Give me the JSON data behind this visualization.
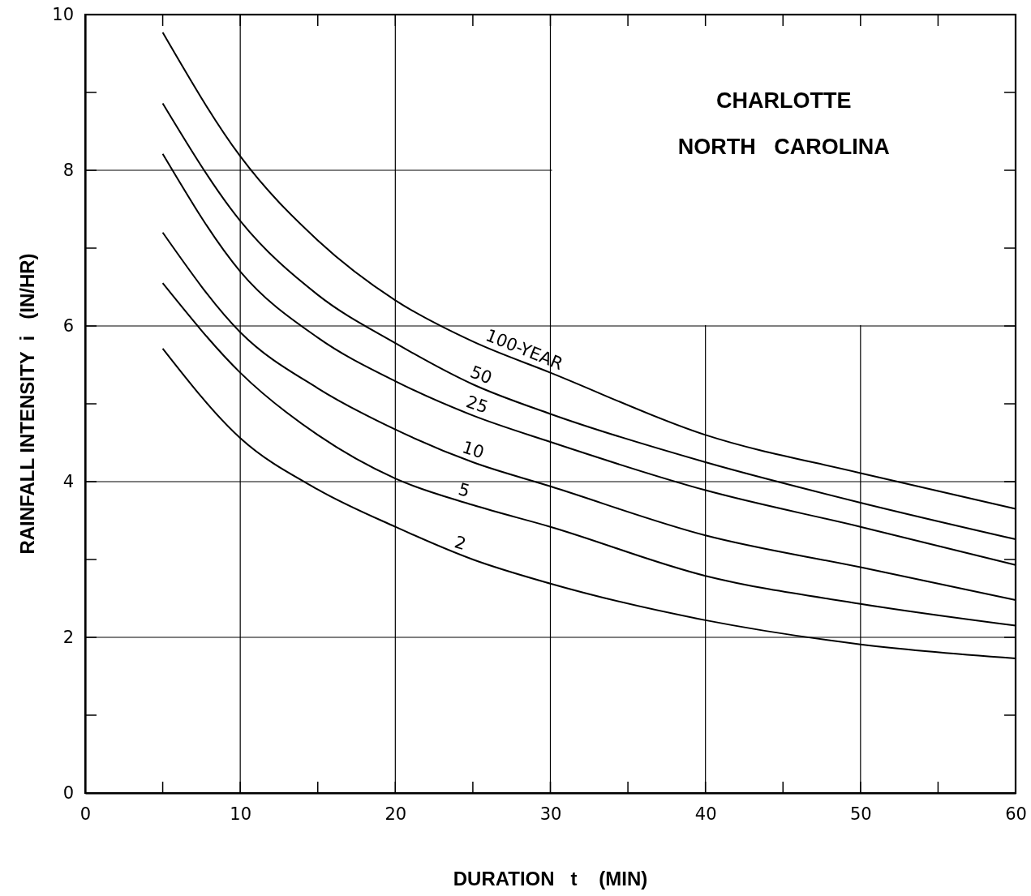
{
  "chart_data": {
    "type": "line",
    "title": "CHARLOTTE",
    "subtitle": "NORTH   CAROLINA",
    "xlabel": "DURATION   t    (MIN)",
    "ylabel": "RAINFALL INTENSITY  i   (IN/HR)",
    "x": [
      5,
      10,
      15,
      20,
      25,
      30,
      40,
      50,
      60
    ],
    "series": [
      {
        "name": "100-YEAR",
        "color": "#000000",
        "values": [
          9.77,
          8.18,
          7.1,
          6.33,
          5.8,
          5.4,
          4.6,
          4.11,
          3.65
        ]
      },
      {
        "name": "50",
        "color": "#000000",
        "values": [
          8.86,
          7.35,
          6.4,
          5.78,
          5.25,
          4.87,
          4.25,
          3.73,
          3.26
        ]
      },
      {
        "name": "25",
        "color": "#000000",
        "values": [
          8.21,
          6.7,
          5.85,
          5.29,
          4.85,
          4.51,
          3.89,
          3.42,
          2.93
        ]
      },
      {
        "name": "10",
        "color": "#000000",
        "values": [
          7.2,
          5.92,
          5.2,
          4.67,
          4.25,
          3.94,
          3.31,
          2.9,
          2.48
        ]
      },
      {
        "name": "5",
        "color": "#000000",
        "values": [
          6.55,
          5.4,
          4.6,
          4.04,
          3.7,
          3.42,
          2.79,
          2.43,
          2.15
        ]
      },
      {
        "name": "2",
        "color": "#000000",
        "values": [
          5.71,
          4.56,
          3.9,
          3.42,
          3.0,
          2.69,
          2.22,
          1.91,
          1.73
        ]
      }
    ],
    "xlim": [
      0,
      60
    ],
    "xticks": [
      0,
      10,
      20,
      30,
      40,
      50,
      60
    ],
    "ylim": [
      0,
      10
    ],
    "yticks": [
      0,
      2,
      4,
      6,
      8,
      10
    ],
    "grid": true,
    "marker": "none",
    "line_style": "solid"
  }
}
